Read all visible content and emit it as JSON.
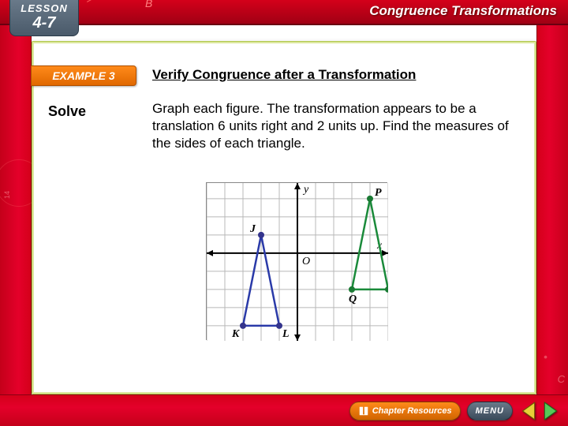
{
  "header": {
    "lesson_label": "LESSON",
    "lesson_number": "4-7",
    "title": "Congruence Transformations",
    "accent_label": "B"
  },
  "example": {
    "tab_label": "EXAMPLE 3",
    "title": "Verify Congruence after a Transformation"
  },
  "solve_label": "Solve",
  "body_text": "Graph each figure. The transformation appears to be a translation 6 units right and 2 units up. Find the measures of the sides of each triangle.",
  "figure": {
    "type": "coordinate-grid",
    "grid": {
      "xmin": -5,
      "xmax": 5,
      "ymin": -5,
      "ymax": 4,
      "cell": 23,
      "origin_label": "O",
      "axis_labels": {
        "x": "x",
        "y": "y"
      }
    },
    "axis_color": "#000000",
    "grid_color": "#b8b8b8",
    "background_color": "#ffffff",
    "label_fontsize": 14,
    "triangles": [
      {
        "name": "JKL",
        "stroke": "#2a3aa8",
        "stroke_width": 2.5,
        "fill": "none",
        "vertex_fill": "#34348c",
        "vertex_radius": 4,
        "points": {
          "J": [
            -2,
            1
          ],
          "K": [
            -3,
            -4
          ],
          "L": [
            -1,
            -4
          ]
        }
      },
      {
        "name": "PQR",
        "stroke": "#1a8a3a",
        "stroke_width": 2.5,
        "fill": "none",
        "vertex_fill": "#1a7a34",
        "vertex_radius": 4,
        "points": {
          "P": [
            4,
            3
          ],
          "Q": [
            3,
            -2
          ],
          "R": [
            5,
            -2
          ]
        }
      }
    ]
  },
  "footer": {
    "chapter_label": "Chapter Resources",
    "menu_label": "MENU"
  },
  "right_rail": {
    "c_label": "C"
  },
  "left_rail": {
    "tick": "14"
  }
}
